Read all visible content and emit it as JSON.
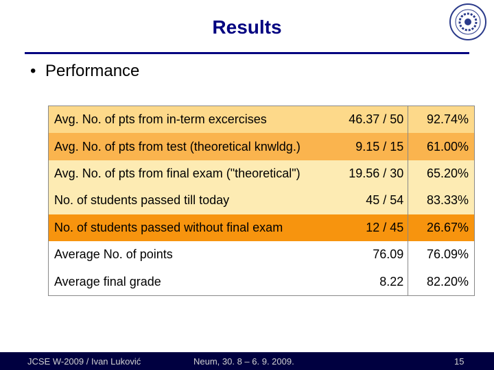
{
  "slide": {
    "title": "Results",
    "bullet": "Performance"
  },
  "table": {
    "rows": [
      {
        "label": "Avg. No. of pts from in-term excercises",
        "ratio": "46.37 / 50",
        "pct": "92.74%"
      },
      {
        "label": "Avg. No. of pts from test (theoretical knwldg.)",
        "ratio": "9.15 / 15",
        "pct": "61.00%"
      },
      {
        "label": "Avg. No. of pts from final exam (\"theoretical\")",
        "ratio": "19.56 / 30",
        "pct": "65.20%"
      },
      {
        "label": "No. of students passed till today",
        "ratio": "45 / 54",
        "pct": "83.33%"
      },
      {
        "label": "No. of students passed without final exam",
        "ratio": "12 / 45",
        "pct": "26.67%"
      },
      {
        "label": "Average No. of points",
        "ratio": "76.09",
        "pct": "76.09%"
      },
      {
        "label": "Average final grade",
        "ratio": "8.22",
        "pct": "82.20%"
      }
    ],
    "row_colors": [
      "#fdd98a",
      "#fab44e",
      "#fdebb3",
      "#fdebb3",
      "#f7940e",
      "#ffffff",
      "#ffffff"
    ]
  },
  "footer": {
    "left": "JCSE W-2009 / Ivan Luković",
    "middle": "Neum, 30. 8 – 6. 9. 2009.",
    "page": "15"
  },
  "logo": {
    "icon": "university-seal-icon"
  }
}
